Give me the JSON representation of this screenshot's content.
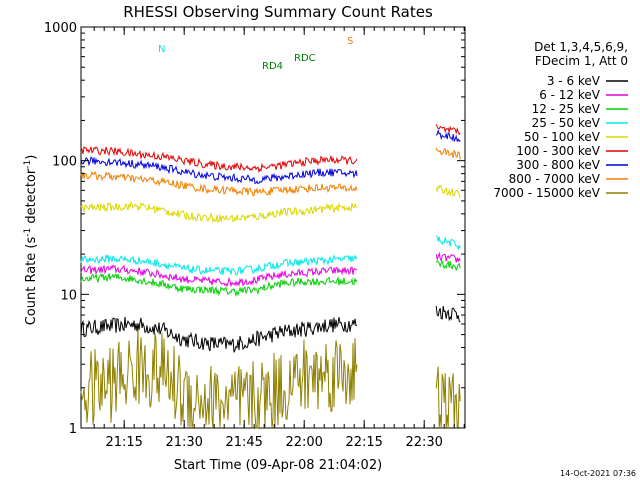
{
  "chart_data": {
    "type": "line",
    "title": "RHESSI Observing Summary Count Rates",
    "xlabel": "Start Time (09-Apr-08 21:04:02)",
    "ylabel_main": "Count Rate (s",
    "ylabel_sup1": "-1",
    "ylabel_mid": " detector",
    "ylabel_sup2": "-1",
    "ylabel_end": ")",
    "yscale": "log",
    "ylim": [
      1,
      1000
    ],
    "xlim_minutes": [
      21.07,
      22.67
    ],
    "x_unit": "hours (UT, decimal)",
    "x_ticks": [
      {
        "value": 21.25,
        "label": "21:15"
      },
      {
        "value": 21.5,
        "label": "21:30"
      },
      {
        "value": 21.75,
        "label": "21:45"
      },
      {
        "value": 22.0,
        "label": "22:00"
      },
      {
        "value": 22.25,
        "label": "22:15"
      },
      {
        "value": 22.5,
        "label": "22:30"
      }
    ],
    "y_ticks": [
      {
        "value": 1,
        "label": "1"
      },
      {
        "value": 10,
        "label": "10"
      },
      {
        "value": 100,
        "label": "100"
      },
      {
        "value": 1000,
        "label": "1000"
      }
    ],
    "legend_header": [
      "Det 1,3,4,5,6,9,",
      "FDecim 1, Att 0"
    ],
    "legend_position": "right",
    "series": [
      {
        "name": "3 - 6 keV",
        "color": "#000000",
        "x": [
          21.07,
          21.2,
          21.3,
          21.4,
          21.5,
          21.6,
          21.7,
          21.8,
          21.9,
          22.0,
          22.1,
          22.2,
          22.22,
          22.55,
          22.62,
          22.65
        ],
        "y": [
          5.5,
          5.8,
          6.0,
          5.5,
          4.6,
          4.3,
          4.2,
          4.6,
          5.2,
          5.5,
          5.9,
          6.0,
          6.0,
          7.5,
          7.3,
          7.0
        ]
      },
      {
        "name": "6 - 12 keV",
        "color": "#e400e4",
        "x": [
          21.07,
          21.2,
          21.3,
          21.4,
          21.5,
          21.6,
          21.7,
          21.8,
          21.9,
          22.0,
          22.1,
          22.2,
          22.22,
          22.55,
          22.62,
          22.65
        ],
        "y": [
          15.0,
          15.5,
          15.0,
          14.0,
          13.0,
          12.5,
          12.3,
          12.8,
          14.0,
          14.5,
          15.0,
          15.0,
          15.0,
          19.0,
          18.5,
          18.0
        ]
      },
      {
        "name": "12 - 25 keV",
        "color": "#00d000",
        "x": [
          21.07,
          21.2,
          21.3,
          21.4,
          21.5,
          21.6,
          21.7,
          21.8,
          21.9,
          22.0,
          22.1,
          22.2,
          22.22,
          22.55,
          22.62,
          22.65
        ],
        "y": [
          13.0,
          13.5,
          13.0,
          12.0,
          11.0,
          10.8,
          10.5,
          10.8,
          12.0,
          12.5,
          12.5,
          12.5,
          12.5,
          17.0,
          16.5,
          16.0
        ]
      },
      {
        "name": "25 - 50 keV",
        "color": "#00e8e8",
        "x": [
          21.07,
          21.2,
          21.3,
          21.4,
          21.5,
          21.6,
          21.7,
          21.8,
          21.9,
          22.0,
          22.1,
          22.2,
          22.22,
          22.55,
          22.62,
          22.65
        ],
        "y": [
          18.0,
          18.5,
          18.0,
          17.0,
          15.5,
          15.0,
          14.8,
          15.5,
          17.0,
          17.5,
          18.0,
          18.5,
          18.5,
          26.0,
          24.0,
          23.0
        ]
      },
      {
        "name": "50 - 100 keV",
        "color": "#d8d800",
        "x": [
          21.07,
          21.2,
          21.3,
          21.4,
          21.5,
          21.6,
          21.7,
          21.8,
          21.9,
          22.0,
          22.1,
          22.2,
          22.22,
          22.55,
          22.62,
          22.65
        ],
        "y": [
          44.0,
          45.0,
          46.0,
          43.0,
          39.0,
          37.5,
          37.0,
          38.0,
          41.0,
          42.0,
          44.0,
          45.0,
          45.0,
          62.0,
          58.0,
          55.0
        ]
      },
      {
        "name": "100 - 300 keV",
        "color": "#e40000",
        "x": [
          21.07,
          21.2,
          21.3,
          21.4,
          21.5,
          21.6,
          21.7,
          21.8,
          21.9,
          22.0,
          22.1,
          22.2,
          22.22,
          22.55,
          22.62,
          22.65
        ],
        "y": [
          120,
          118,
          112,
          108,
          100,
          93,
          90,
          88,
          92,
          98,
          102,
          100,
          100,
          175,
          165,
          160
        ]
      },
      {
        "name": "300 - 800 keV",
        "color": "#0000e0",
        "x": [
          21.07,
          21.2,
          21.3,
          21.4,
          21.5,
          21.6,
          21.7,
          21.8,
          21.9,
          22.0,
          22.1,
          22.2,
          22.22,
          22.55,
          22.62,
          22.65
        ],
        "y": [
          100,
          98,
          94,
          90,
          82,
          77,
          74,
          72,
          75,
          80,
          82,
          80,
          80,
          160,
          150,
          145
        ]
      },
      {
        "name": "800 - 7000 keV",
        "color": "#f08000",
        "x": [
          21.07,
          21.2,
          21.3,
          21.4,
          21.5,
          21.6,
          21.7,
          21.8,
          21.9,
          22.0,
          22.1,
          22.2,
          22.22,
          22.55,
          22.62,
          22.65
        ],
        "y": [
          78,
          76,
          73,
          70,
          65,
          61,
          60,
          58,
          60,
          62,
          63,
          62,
          62,
          120,
          112,
          108
        ]
      },
      {
        "name": "7000 - 15000 keV",
        "color": "#908000",
        "x": [
          21.07,
          21.2,
          21.3,
          21.4,
          21.5,
          21.6,
          21.7,
          21.8,
          21.9,
          22.0,
          22.1,
          22.2,
          22.22,
          22.55,
          22.62,
          22.65
        ],
        "y": [
          1.8,
          2.2,
          2.8,
          2.7,
          1.8,
          1.6,
          1.5,
          1.6,
          2.0,
          2.4,
          2.6,
          2.7,
          2.7,
          1.5,
          1.4,
          1.4
        ]
      }
    ],
    "markers": [
      {
        "label": "N",
        "color": "#00e8e8"
      },
      {
        "label": "S",
        "color": "#f08000"
      },
      {
        "label": "RD4",
        "color": "#008000"
      },
      {
        "label": "RDC",
        "color": "#008000"
      }
    ],
    "footer_timestamp": "14-Oct-2021 07:36"
  }
}
